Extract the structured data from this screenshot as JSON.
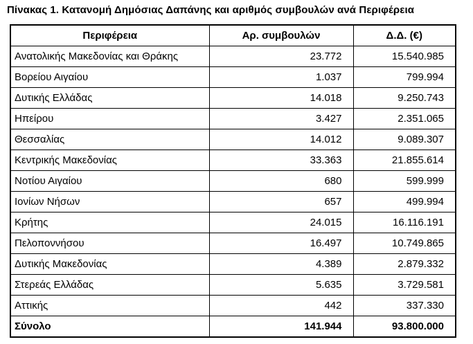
{
  "title": "Πίνακας 1. Κατανομή Δημόσιας Δαπάνης και αριθμός συμβουλών ανά Περιφέρεια",
  "table": {
    "headers": [
      "Περιφέρεια",
      "Αρ. συμβουλών",
      "Δ.Δ. (€)"
    ],
    "rows": [
      [
        "Ανατολικής Μακεδονίας και Θράκης",
        "23.772",
        "15.540.985"
      ],
      [
        "Βορείου Αιγαίου",
        "1.037",
        "799.994"
      ],
      [
        "Δυτικής Ελλάδας",
        "14.018",
        "9.250.743"
      ],
      [
        "Ηπείρου",
        "3.427",
        "2.351.065"
      ],
      [
        "Θεσσαλίας",
        "14.012",
        "9.089.307"
      ],
      [
        "Κεντρικής Μακεδονίας",
        "33.363",
        "21.855.614"
      ],
      [
        "Νοτίου Αιγαίου",
        "680",
        "599.999"
      ],
      [
        "Ιονίων Νήσων",
        "657",
        "499.994"
      ],
      [
        "Κρήτης",
        "24.015",
        "16.116.191"
      ],
      [
        "Πελοποννήσου",
        "16.497",
        "10.749.865"
      ],
      [
        "Δυτικής Μακεδονίας",
        "4.389",
        "2.879.332"
      ],
      [
        "Στερεάς Ελλάδας",
        "5.635",
        "3.729.581"
      ],
      [
        "Αττικής",
        "442",
        "337.330"
      ]
    ],
    "total_row": [
      "Σύνολο",
      "141.944",
      "93.800.000"
    ]
  },
  "colors": {
    "text": "#000000",
    "border": "#000000",
    "background": "#ffffff"
  }
}
